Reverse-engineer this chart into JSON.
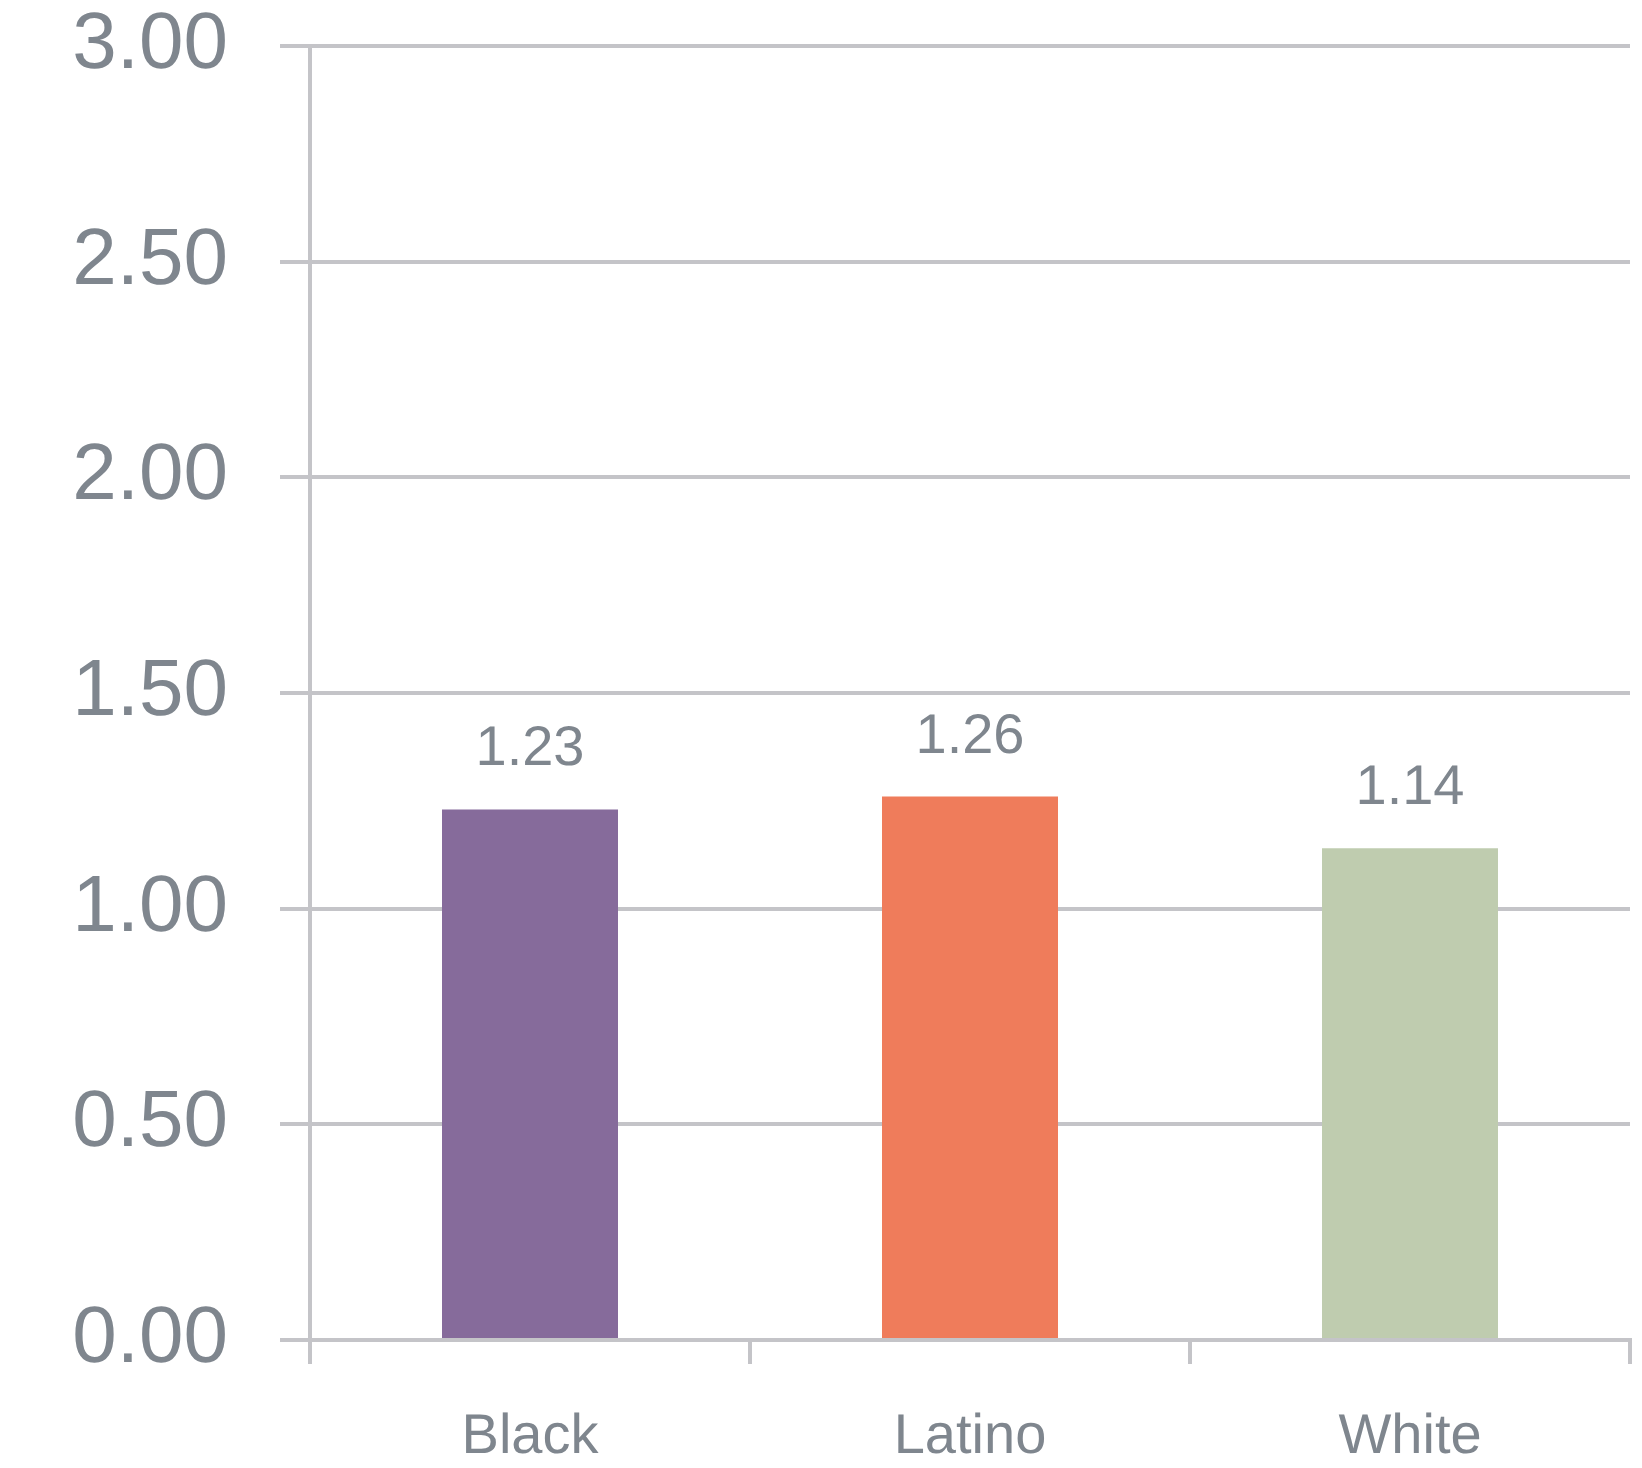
{
  "chart_data": {
    "type": "bar",
    "categories": [
      "Black",
      "Latino",
      "White"
    ],
    "values": [
      1.23,
      1.26,
      1.14
    ],
    "colors": [
      "#866b9b",
      "#ef7c5b",
      "#bfccaf"
    ],
    "ylim": [
      0,
      3
    ],
    "yticks": [
      {
        "value": 0,
        "label": "0.00"
      },
      {
        "value": 0.5,
        "label": "0.50"
      },
      {
        "value": 1,
        "label": "1.00"
      },
      {
        "value": 1.5,
        "label": "1.50"
      },
      {
        "value": 2,
        "label": "2.00"
      },
      {
        "value": 2.5,
        "label": "2.50"
      },
      {
        "value": 3,
        "label": "3.00"
      }
    ],
    "grid": "y",
    "data_labels": true
  }
}
